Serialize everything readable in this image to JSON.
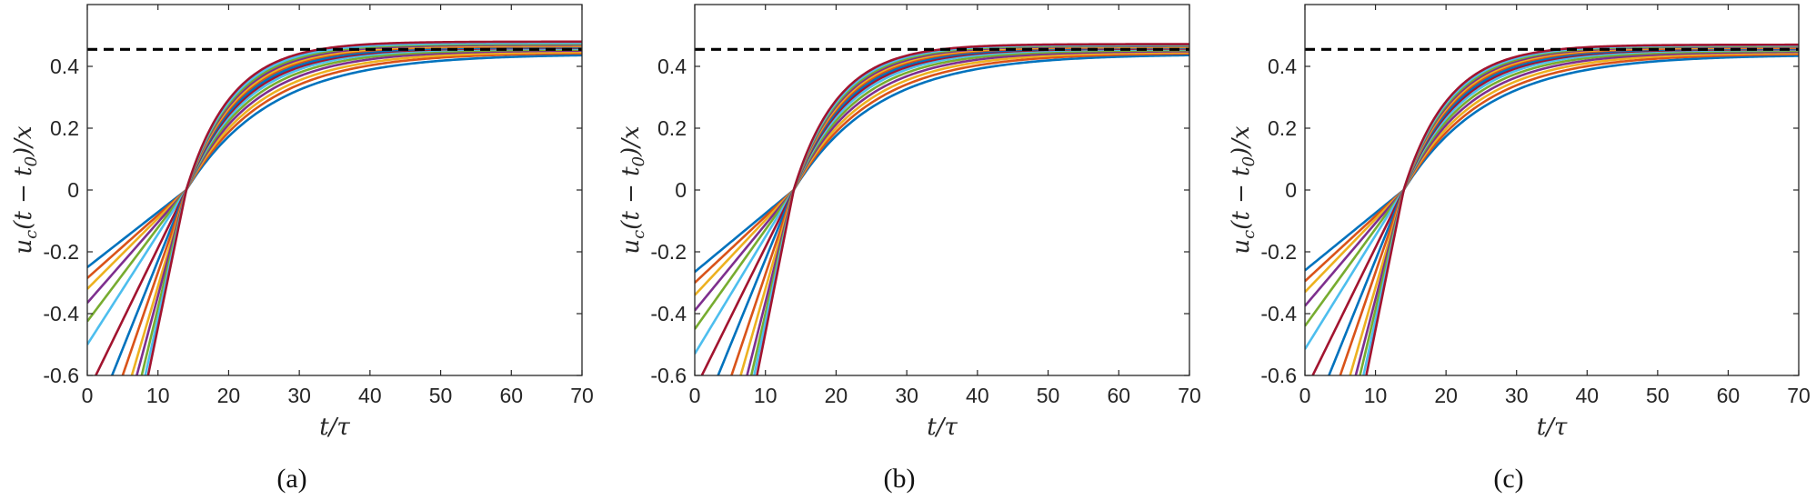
{
  "figure": {
    "panels": [
      {
        "caption": "(a)"
      },
      {
        "caption": "(b)"
      },
      {
        "caption": "(c)"
      }
    ]
  },
  "colors": [
    "#0072BD",
    "#D95319",
    "#EDB120",
    "#7E2F8E",
    "#77AC30",
    "#4DBEEE",
    "#A2142F"
  ],
  "chart_data": [
    {
      "type": "line",
      "xlabel": "t/τ",
      "ylabel": "u_c(t − t_0)/x",
      "xlim": [
        0,
        70
      ],
      "ylim": [
        -0.6,
        0.6
      ],
      "xticks": [
        "0",
        "10",
        "20",
        "30",
        "40",
        "50",
        "60",
        "70"
      ],
      "yticks": [
        "-0.6",
        "-0.4",
        "-0.2",
        "0",
        "0.2",
        "0.4"
      ],
      "reference_line": {
        "y": 0.455,
        "style": "dashed",
        "color": "#000000"
      },
      "crossing_point": {
        "x": 14,
        "y": 0
      },
      "curve_model": "y = (v/x)(t - 14) for 0 ≤ t ≤ 14; y = A(1 - exp(-(t - 14)/T)) for t ≥ 14",
      "curves": [
        {
          "x_left": 0.0,
          "y_left": -0.25,
          "A": 0.44,
          "T": 12.0
        },
        {
          "x_left": 0.0,
          "y_left": -0.285,
          "A": 0.445,
          "T": 11.0
        },
        {
          "x_left": 0.0,
          "y_left": -0.32,
          "A": 0.448,
          "T": 10.2
        },
        {
          "x_left": 0.0,
          "y_left": -0.365,
          "A": 0.452,
          "T": 9.5
        },
        {
          "x_left": 0.0,
          "y_left": -0.425,
          "A": 0.455,
          "T": 8.9
        },
        {
          "x_left": 0.0,
          "y_left": -0.5,
          "A": 0.458,
          "T": 8.4
        },
        {
          "x_left": 1.2,
          "y_left": -0.6,
          "A": 0.46,
          "T": 8.0
        },
        {
          "x_left": 3.5,
          "y_left": -0.6,
          "A": 0.462,
          "T": 7.7
        },
        {
          "x_left": 5.0,
          "y_left": -0.6,
          "A": 0.465,
          "T": 7.4
        },
        {
          "x_left": 6.3,
          "y_left": -0.6,
          "A": 0.467,
          "T": 7.2
        },
        {
          "x_left": 7.0,
          "y_left": -0.6,
          "A": 0.47,
          "T": 7.0
        },
        {
          "x_left": 7.7,
          "y_left": -0.6,
          "A": 0.473,
          "T": 6.8
        },
        {
          "x_left": 8.2,
          "y_left": -0.6,
          "A": 0.476,
          "T": 6.6
        },
        {
          "x_left": 8.6,
          "y_left": -0.6,
          "A": 0.48,
          "T": 6.4
        }
      ]
    },
    {
      "type": "line",
      "xlabel": "t/τ",
      "ylabel": "u_c(t − t_0)/x",
      "xlim": [
        0,
        70
      ],
      "ylim": [
        -0.6,
        0.6
      ],
      "xticks": [
        "0",
        "10",
        "20",
        "30",
        "40",
        "50",
        "60",
        "70"
      ],
      "yticks": [
        "-0.6",
        "-0.4",
        "-0.2",
        "0",
        "0.2",
        "0.4"
      ],
      "reference_line": {
        "y": 0.455,
        "style": "dashed",
        "color": "#000000"
      },
      "crossing_point": {
        "x": 14,
        "y": 0
      },
      "curve_model": "y = (v/x)(t - 14) for 0 ≤ t ≤ 14; y = A(1 - exp(-(t - 14)/T)) for t ≥ 14",
      "curves": [
        {
          "x_left": 0.0,
          "y_left": -0.265,
          "A": 0.44,
          "T": 11.8
        },
        {
          "x_left": 0.0,
          "y_left": -0.3,
          "A": 0.444,
          "T": 10.9
        },
        {
          "x_left": 0.0,
          "y_left": -0.34,
          "A": 0.447,
          "T": 10.1
        },
        {
          "x_left": 0.0,
          "y_left": -0.39,
          "A": 0.45,
          "T": 9.4
        },
        {
          "x_left": 0.0,
          "y_left": -0.45,
          "A": 0.453,
          "T": 8.8
        },
        {
          "x_left": 0.0,
          "y_left": -0.53,
          "A": 0.456,
          "T": 8.3
        },
        {
          "x_left": 1.0,
          "y_left": -0.6,
          "A": 0.458,
          "T": 7.9
        },
        {
          "x_left": 3.3,
          "y_left": -0.6,
          "A": 0.46,
          "T": 7.6
        },
        {
          "x_left": 5.2,
          "y_left": -0.6,
          "A": 0.462,
          "T": 7.3
        },
        {
          "x_left": 6.5,
          "y_left": -0.6,
          "A": 0.464,
          "T": 7.1
        },
        {
          "x_left": 7.4,
          "y_left": -0.6,
          "A": 0.466,
          "T": 6.9
        },
        {
          "x_left": 8.0,
          "y_left": -0.6,
          "A": 0.468,
          "T": 6.7
        },
        {
          "x_left": 8.4,
          "y_left": -0.6,
          "A": 0.47,
          "T": 6.5
        },
        {
          "x_left": 8.8,
          "y_left": -0.6,
          "A": 0.472,
          "T": 6.3
        }
      ]
    },
    {
      "type": "line",
      "xlabel": "t/τ",
      "ylabel": "u_c(t − t_0)/x",
      "xlim": [
        0,
        70
      ],
      "ylim": [
        -0.6,
        0.6
      ],
      "xticks": [
        "0",
        "10",
        "20",
        "30",
        "40",
        "50",
        "60",
        "70"
      ],
      "yticks": [
        "-0.6",
        "-0.4",
        "-0.2",
        "0",
        "0.2",
        "0.4"
      ],
      "reference_line": {
        "y": 0.455,
        "style": "dashed",
        "color": "#000000"
      },
      "crossing_point": {
        "x": 14,
        "y": 0
      },
      "curve_model": "y = (v/x)(t - 14) for 0 ≤ t ≤ 14; y = A(1 - exp(-(t - 14)/T)) for t ≥ 14",
      "curves": [
        {
          "x_left": 0.0,
          "y_left": -0.26,
          "A": 0.438,
          "T": 11.9
        },
        {
          "x_left": 0.0,
          "y_left": -0.295,
          "A": 0.442,
          "T": 11.0
        },
        {
          "x_left": 0.0,
          "y_left": -0.33,
          "A": 0.445,
          "T": 10.2
        },
        {
          "x_left": 0.0,
          "y_left": -0.375,
          "A": 0.448,
          "T": 9.5
        },
        {
          "x_left": 0.0,
          "y_left": -0.44,
          "A": 0.451,
          "T": 8.9
        },
        {
          "x_left": 0.0,
          "y_left": -0.515,
          "A": 0.454,
          "T": 8.4
        },
        {
          "x_left": 1.1,
          "y_left": -0.6,
          "A": 0.456,
          "T": 8.0
        },
        {
          "x_left": 3.4,
          "y_left": -0.6,
          "A": 0.458,
          "T": 7.7
        },
        {
          "x_left": 5.0,
          "y_left": -0.6,
          "A": 0.46,
          "T": 7.4
        },
        {
          "x_left": 6.4,
          "y_left": -0.6,
          "A": 0.462,
          "T": 7.2
        },
        {
          "x_left": 7.2,
          "y_left": -0.6,
          "A": 0.464,
          "T": 7.0
        },
        {
          "x_left": 7.8,
          "y_left": -0.6,
          "A": 0.466,
          "T": 6.8
        },
        {
          "x_left": 8.3,
          "y_left": -0.6,
          "A": 0.468,
          "T": 6.6
        },
        {
          "x_left": 8.7,
          "y_left": -0.6,
          "A": 0.47,
          "T": 6.4
        }
      ]
    }
  ]
}
